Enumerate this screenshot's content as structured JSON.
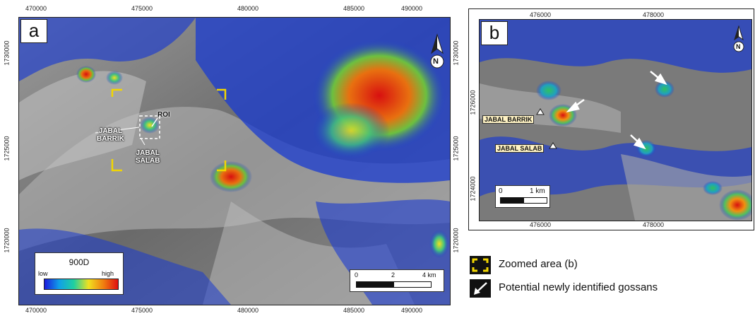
{
  "panel_a": {
    "letter": "a",
    "x_ticks": [
      "470000",
      "475000",
      "480000",
      "485000",
      "490000"
    ],
    "y_ticks": [
      "1730000",
      "1725000",
      "1720000"
    ],
    "roi_label": "ROI",
    "label_barrik": "JABAL\nBARRIK",
    "label_salab": "JABAL\nSALAB",
    "north": "N",
    "scale": {
      "zero": "0",
      "mid": "2",
      "end": "4 km"
    },
    "colorbar": {
      "title": "900D",
      "low": "low",
      "high": "high"
    }
  },
  "panel_b": {
    "letter": "b",
    "x_ticks": [
      "476000",
      "478000"
    ],
    "y_ticks": [
      "1726000",
      "1724000"
    ],
    "label_barrik": "JABAL BARRIK",
    "label_salab": "JABAL SALAB",
    "north": "N",
    "scale": {
      "zero": "0",
      "end": "1 km"
    }
  },
  "legend": {
    "zoom": "Zoomed area (b)",
    "gossans": "Potential newly identified gossans"
  },
  "colors": {
    "zoom_bracket": "#f2d600",
    "low": "#1830c8",
    "high": "#e01010"
  }
}
